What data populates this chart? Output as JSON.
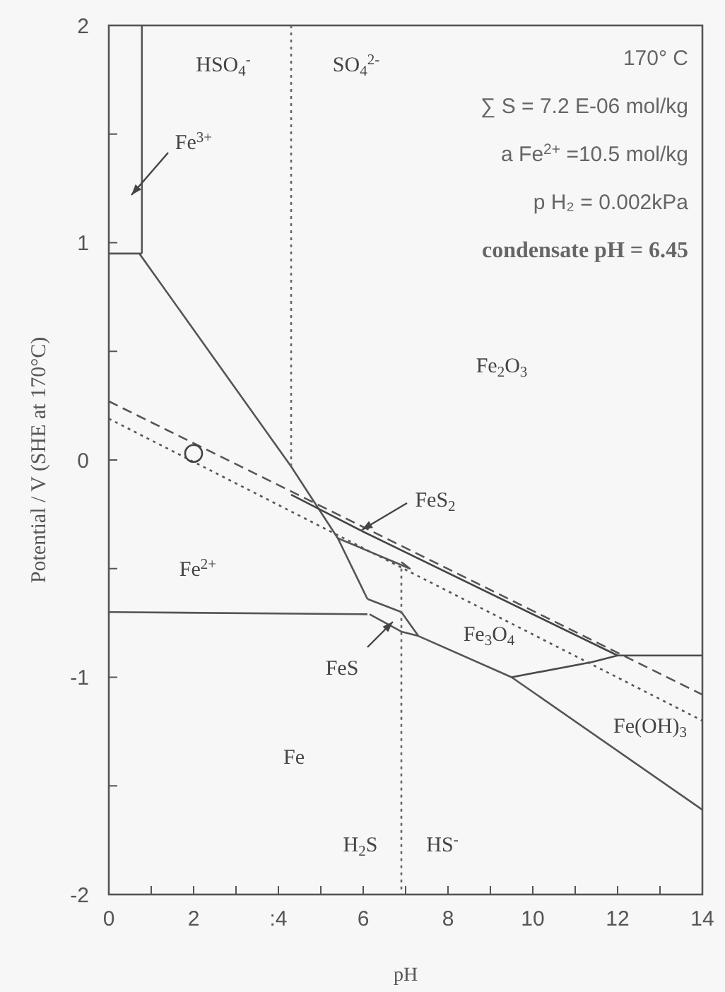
{
  "chart_data": {
    "type": "line",
    "xlabel": "pH",
    "ylabel": "Potential / V (SHE at 170°C)",
    "xlim": [
      0,
      14
    ],
    "ylim": [
      -2,
      2
    ],
    "xticks": [
      0,
      {
        "value": 1,
        "label": null
      },
      2,
      {
        "value": 3,
        "label": null
      },
      {
        "value": 4,
        "label": ":4"
      },
      {
        "value": 5,
        "label": null
      },
      6,
      {
        "value": 7,
        "label": null
      },
      8,
      {
        "value": 9,
        "label": null
      },
      10,
      {
        "value": 11,
        "label": null
      },
      12,
      {
        "value": 13,
        "label": null
      },
      14
    ],
    "yticks": [
      -2,
      {
        "value": -1.5,
        "label": null
      },
      -1,
      {
        "value": -0.5,
        "label": null
      },
      0,
      {
        "value": 0.5,
        "label": null
      },
      1,
      {
        "value": 1.5,
        "label": null
      },
      2
    ],
    "grid": false,
    "line_style": "solid",
    "series": [
      {
        "color": "#555555",
        "x": [
          0.78,
          0.78
        ],
        "values": [
          2,
          0.95
        ]
      },
      {
        "color": "#555555",
        "x": [
          0,
          0.78
        ],
        "values": [
          0.95,
          0.95
        ]
      },
      {
        "color": "#555555",
        "x": [
          0.72,
          4.3,
          5.4,
          6.1
        ],
        "values": [
          0.95,
          -0.03,
          -0.36,
          -0.64
        ]
      },
      {
        "color": "#555555",
        "x": [
          0,
          6.1
        ],
        "values": [
          -0.7,
          -0.71
        ]
      },
      {
        "color": "#555555",
        "x": [
          6.1,
          6.9,
          7.3
        ],
        "values": [
          -0.64,
          -0.7,
          -0.81
        ]
      },
      {
        "color": "#555555",
        "x": [
          6.15,
          6.9,
          7.3,
          9.5,
          14
        ],
        "values": [
          -0.71,
          -0.79,
          -0.81,
          -1.0,
          -1.61
        ]
      },
      {
        "color": "#4a4a4a",
        "x": [
          9.5,
          11.4,
          12,
          14
        ],
        "values": [
          -1.0,
          -0.93,
          -0.9,
          -0.9
        ]
      },
      {
        "color": "#444444",
        "x": [
          4.3,
          6.0,
          12
        ],
        "values": [
          -0.16,
          -0.33,
          -0.9
        ]
      },
      {
        "color": "#555555",
        "x": [
          5.4,
          7.1,
          6.9
        ],
        "values": [
          -0.36,
          -0.5,
          -0.47
        ]
      },
      {
        "color": "#555555",
        "line_style": "dashed",
        "x": [
          0,
          14
        ],
        "values": [
          0.27,
          -1.08
        ]
      },
      {
        "color": "#555555",
        "line_style": "dotted",
        "x": [
          0,
          14
        ],
        "values": [
          0.19,
          -1.2
        ]
      },
      {
        "color": "#666666",
        "line_style": "dotted",
        "x": [
          4.3,
          4.3
        ],
        "values": [
          2,
          -0.03
        ]
      },
      {
        "color": "#666666",
        "line_style": "dotted",
        "x": [
          6.9,
          6.9
        ],
        "values": [
          -0.5,
          -2
        ]
      },
      {
        "type": "scatter",
        "color": "#444444",
        "marker": "circle",
        "x": [
          2
        ],
        "values": [
          0.03
        ]
      }
    ],
    "annotations": [
      "HSO$_{4}$$^{-}$",
      "SO$_{4}$$^{2-}$",
      "Fe$^{3+}$",
      "Fe$_{2}$O$_{3}$",
      "FeS$_{2}$",
      "Fe$^{2+}$",
      "Fe$_{3}$O$_{4}$",
      "FeS",
      "Fe(OH)$_{3}$",
      "Fe",
      "H$_{2}$S",
      "HS$^{-}$",
      "170° C",
      "∑ S = 7.2 E-06 mol/kg",
      "a Fe$^{2+}$ =10.5 mol/kg",
      "p H₂ = 0.002kPa",
      "condensate pH = 6.45"
    ]
  }
}
